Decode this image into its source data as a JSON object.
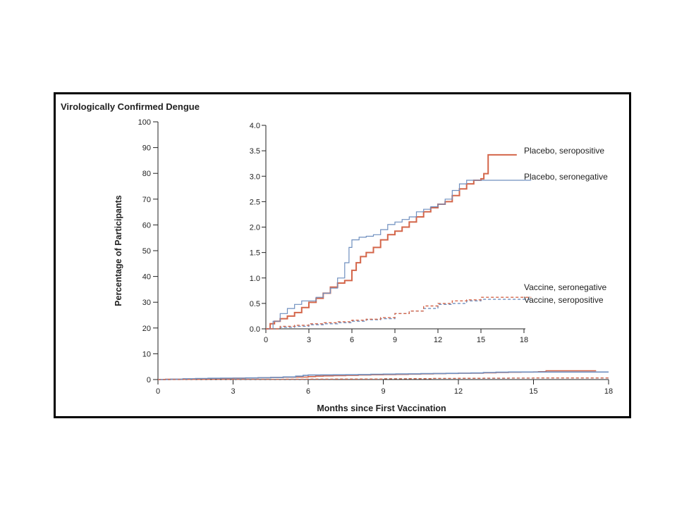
{
  "chart_data": [
    {
      "type": "line",
      "role": "main",
      "title": "Virologically Confirmed Dengue",
      "xlabel": "Months since First Vaccination",
      "ylabel": "Percentage of Participants",
      "xlim": [
        0,
        18
      ],
      "ylim": [
        0,
        100
      ],
      "xticks": [
        0,
        3,
        6,
        9,
        12,
        15,
        18
      ],
      "yticks": [
        0,
        10,
        20,
        30,
        40,
        50,
        60,
        70,
        80,
        90,
        100
      ],
      "grid": false,
      "colors": {
        "placebo_seropositive": "#d4664a",
        "placebo_seronegative": "#6f8fbf",
        "vaccine_seronegative": "#6f8fbf",
        "vaccine_seropositive": "#d4664a"
      }
    },
    {
      "type": "line",
      "role": "inset",
      "xlim": [
        0,
        18
      ],
      "ylim": [
        0,
        4.0
      ],
      "xticks": [
        0,
        3,
        6,
        9,
        12,
        15,
        18
      ],
      "yticks": [
        "0.0",
        "0.5",
        "1.0",
        "1.5",
        "2.0",
        "2.5",
        "3.0",
        "3.5",
        "4.0"
      ],
      "grid": false,
      "series": [
        {
          "name": "Placebo, seropositive",
          "style": "solid",
          "color": "#d4664a",
          "x": [
            0,
            0.3,
            0.6,
            1.0,
            1.5,
            2.0,
            2.5,
            3.0,
            3.5,
            4.0,
            4.5,
            5.0,
            5.5,
            6.0,
            6.3,
            6.6,
            7.0,
            7.5,
            8.0,
            8.5,
            9.0,
            9.5,
            10.0,
            10.5,
            11.0,
            11.5,
            12.0,
            12.5,
            13.0,
            13.5,
            14.0,
            14.5,
            15.0,
            15.2,
            15.5,
            17.5
          ],
          "y": [
            0,
            0.1,
            0.15,
            0.2,
            0.25,
            0.32,
            0.42,
            0.52,
            0.6,
            0.7,
            0.82,
            0.9,
            0.95,
            1.15,
            1.3,
            1.42,
            1.5,
            1.6,
            1.75,
            1.85,
            1.92,
            2.0,
            2.1,
            2.2,
            2.3,
            2.38,
            2.45,
            2.5,
            2.62,
            2.75,
            2.85,
            2.92,
            2.95,
            3.05,
            3.42,
            3.42
          ]
        },
        {
          "name": "Placebo, seronegative",
          "style": "solid",
          "color": "#6f8fbf",
          "x": [
            0,
            0.5,
            1.0,
            1.5,
            2.0,
            2.5,
            3.0,
            3.5,
            4.0,
            4.5,
            5.0,
            5.5,
            5.8,
            6.0,
            6.5,
            7.0,
            7.5,
            8.0,
            8.5,
            9.0,
            9.5,
            10.0,
            10.5,
            11.0,
            11.5,
            12.0,
            12.5,
            13.0,
            13.5,
            14.0,
            14.5,
            18.5
          ],
          "y": [
            0,
            0.15,
            0.3,
            0.4,
            0.48,
            0.55,
            0.55,
            0.62,
            0.7,
            0.8,
            1.0,
            1.3,
            1.6,
            1.75,
            1.8,
            1.82,
            1.85,
            1.95,
            2.05,
            2.1,
            2.15,
            2.2,
            2.3,
            2.35,
            2.4,
            2.45,
            2.55,
            2.72,
            2.85,
            2.92,
            2.92,
            2.92
          ]
        },
        {
          "name": "Vaccine, seronegative",
          "style": "dashed",
          "color": "#6f8fbf",
          "x": [
            0,
            1,
            2,
            3,
            4,
            5,
            6,
            7,
            8,
            9,
            10,
            11,
            12,
            13,
            14,
            15,
            18.5
          ],
          "y": [
            0,
            0.03,
            0.05,
            0.08,
            0.1,
            0.12,
            0.15,
            0.18,
            0.2,
            0.3,
            0.35,
            0.4,
            0.48,
            0.5,
            0.55,
            0.58,
            0.58
          ]
        },
        {
          "name": "Vaccine, seropositive",
          "style": "dashed",
          "color": "#d4664a",
          "x": [
            0,
            1,
            2,
            3,
            4,
            5,
            6,
            7,
            8,
            9,
            10,
            11,
            12,
            13,
            14,
            15,
            18.5
          ],
          "y": [
            0,
            0.05,
            0.07,
            0.1,
            0.12,
            0.14,
            0.17,
            0.19,
            0.22,
            0.3,
            0.35,
            0.45,
            0.5,
            0.55,
            0.57,
            0.62,
            0.62
          ]
        }
      ]
    }
  ]
}
